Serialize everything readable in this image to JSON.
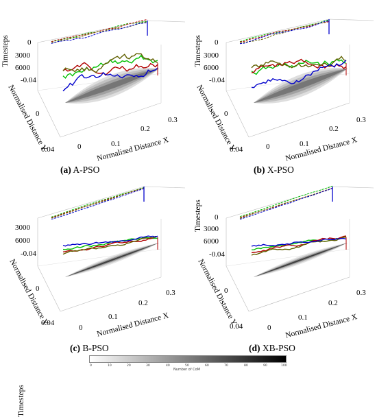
{
  "chart_data": [
    {
      "type": "line",
      "caption_letter": "(a)",
      "caption_name": "A-PSO",
      "xlabel": "Normalised Distance X",
      "ylabel": "Normalised Distance Y",
      "zlabel": "Timesteps",
      "x_ticks": [
        "0",
        "0.1",
        "0.2",
        "0.3"
      ],
      "y_ticks": [
        "-0.04",
        "0",
        "0.04"
      ],
      "z_ticks": [
        "0",
        "3000",
        "6000"
      ],
      "series_colors": [
        "#00c000",
        "#b00000",
        "#606000",
        "#0000cc"
      ]
    },
    {
      "type": "line",
      "caption_letter": "(b)",
      "caption_name": "X-PSO",
      "xlabel": "Normalised Distance X",
      "ylabel": "Normalised Distance Y",
      "zlabel": "Timesteps",
      "x_ticks": [
        "0",
        "0.1",
        "0.2",
        "0.3"
      ],
      "y_ticks": [
        "-0.04",
        "0",
        "0.04"
      ],
      "z_ticks": [
        "0",
        "3000",
        "6000"
      ],
      "series_colors": [
        "#00c000",
        "#b00000",
        "#606000",
        "#0000cc"
      ]
    },
    {
      "type": "line",
      "caption_letter": "(c)",
      "caption_name": "B-PSO",
      "xlabel": "Normalised Distance X",
      "ylabel": "Normalised Distance Y",
      "zlabel": "Timesteps",
      "x_ticks": [
        "0",
        "0.1",
        "0.2",
        "0.3"
      ],
      "y_ticks": [
        "-0.04",
        "0",
        "0.04"
      ],
      "z_ticks": [
        "0",
        "3000",
        "6000"
      ],
      "series_colors": [
        "#00c000",
        "#b00000",
        "#606000",
        "#0000cc"
      ]
    },
    {
      "type": "line",
      "caption_letter": "(d)",
      "caption_name": "XB-PSO",
      "xlabel": "Normalised Distance X",
      "ylabel": "Normalised Distance Y",
      "zlabel": "Timesteps",
      "x_ticks": [
        "0",
        "0.1",
        "0.2",
        "0.3"
      ],
      "y_ticks": [
        "-0.04",
        "0",
        "0.04"
      ],
      "z_ticks": [
        "0",
        "3000",
        "6000"
      ],
      "series_colors": [
        "#00c000",
        "#b00000",
        "#606000",
        "#0000cc"
      ]
    }
  ],
  "colorbar": {
    "label": "Number of CoM",
    "ticks": [
      "0",
      "10",
      "20",
      "30",
      "40",
      "50",
      "60",
      "70",
      "80",
      "90",
      "100"
    ],
    "range": [
      0,
      100
    ],
    "colors": [
      "#ffffff",
      "#000000"
    ]
  }
}
